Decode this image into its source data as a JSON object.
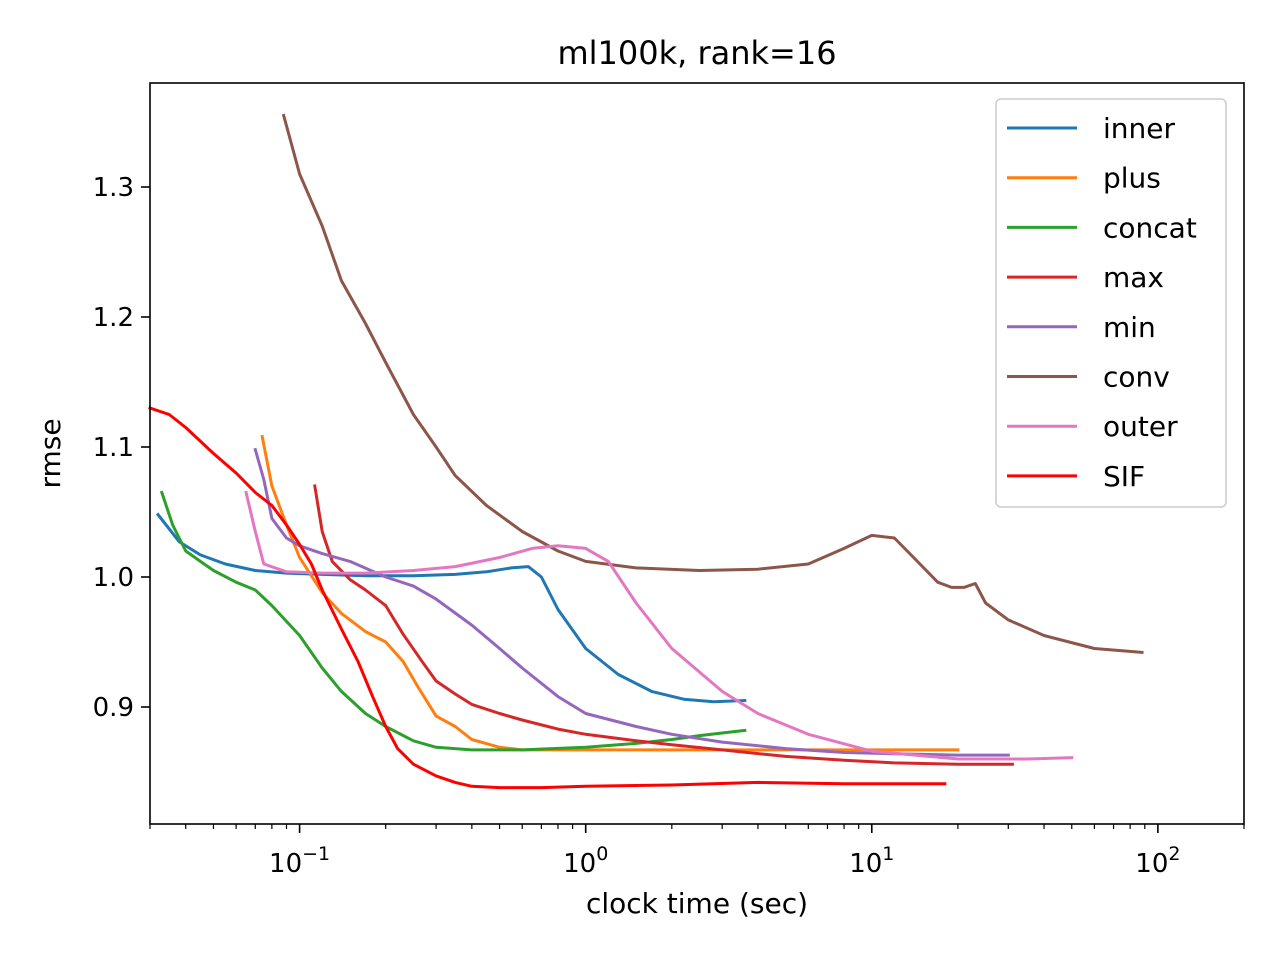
{
  "chart_data": {
    "type": "line",
    "title": "ml100k, rank=16",
    "xlabel": "clock time (sec)",
    "ylabel": "rmse",
    "xscale": "log",
    "xlim": [
      0.03,
      200
    ],
    "ylim": [
      0.81,
      1.38
    ],
    "grid": false,
    "legend_position": "top-right",
    "x_ticks": [
      {
        "value": 0.1,
        "base": "10",
        "exp": "−1"
      },
      {
        "value": 1,
        "base": "10",
        "exp": "0"
      },
      {
        "value": 10,
        "base": "10",
        "exp": "1"
      },
      {
        "value": 100,
        "base": "10",
        "exp": "2"
      }
    ],
    "y_ticks": [
      {
        "value": 0.9,
        "label": "0.9"
      },
      {
        "value": 1.0,
        "label": "1.0"
      },
      {
        "value": 1.1,
        "label": "1.1"
      },
      {
        "value": 1.2,
        "label": "1.2"
      },
      {
        "value": 1.3,
        "label": "1.3"
      }
    ],
    "series": [
      {
        "name": "inner",
        "color": "#1f77b4",
        "x": [
          0.032,
          0.038,
          0.045,
          0.055,
          0.07,
          0.09,
          0.12,
          0.17,
          0.25,
          0.35,
          0.45,
          0.55,
          0.63,
          0.7,
          0.8,
          1.0,
          1.3,
          1.7,
          2.2,
          2.8,
          3.6
        ],
        "y": [
          1.048,
          1.027,
          1.017,
          1.01,
          1.005,
          1.003,
          1.002,
          1.001,
          1.001,
          1.002,
          1.004,
          1.007,
          1.008,
          1.0,
          0.975,
          0.945,
          0.925,
          0.912,
          0.906,
          0.904,
          0.905
        ]
      },
      {
        "name": "plus",
        "color": "#ff7f0e",
        "x": [
          0.074,
          0.08,
          0.09,
          0.1,
          0.12,
          0.14,
          0.17,
          0.2,
          0.23,
          0.26,
          0.3,
          0.35,
          0.4,
          0.5,
          0.6,
          0.8,
          1.2,
          2.0,
          3.5,
          8,
          20
        ],
        "y": [
          1.108,
          1.07,
          1.04,
          1.015,
          0.988,
          0.972,
          0.958,
          0.95,
          0.935,
          0.915,
          0.893,
          0.885,
          0.875,
          0.869,
          0.867,
          0.867,
          0.867,
          0.867,
          0.867,
          0.867,
          0.867
        ]
      },
      {
        "name": "concat",
        "color": "#2ca02c",
        "x": [
          0.033,
          0.036,
          0.04,
          0.045,
          0.05,
          0.06,
          0.07,
          0.08,
          0.1,
          0.12,
          0.14,
          0.17,
          0.2,
          0.25,
          0.3,
          0.4,
          0.6,
          1.0,
          1.5,
          2.0,
          2.5,
          3.0,
          3.6
        ],
        "y": [
          1.065,
          1.04,
          1.02,
          1.012,
          1.005,
          0.996,
          0.99,
          0.978,
          0.955,
          0.93,
          0.912,
          0.895,
          0.885,
          0.874,
          0.869,
          0.867,
          0.867,
          0.869,
          0.872,
          0.875,
          0.878,
          0.88,
          0.882
        ]
      },
      {
        "name": "max",
        "color": "#d62728",
        "x": [
          0.113,
          0.12,
          0.13,
          0.15,
          0.17,
          0.2,
          0.23,
          0.27,
          0.3,
          0.35,
          0.4,
          0.5,
          0.6,
          0.8,
          1.0,
          1.5,
          2.0,
          3.0,
          5.0,
          8.0,
          12,
          20,
          31
        ],
        "y": [
          1.07,
          1.035,
          1.012,
          0.998,
          0.99,
          0.978,
          0.956,
          0.934,
          0.92,
          0.91,
          0.902,
          0.895,
          0.89,
          0.883,
          0.879,
          0.874,
          0.871,
          0.867,
          0.862,
          0.859,
          0.857,
          0.856,
          0.856
        ]
      },
      {
        "name": "min",
        "color": "#9467bd",
        "x": [
          0.07,
          0.075,
          0.08,
          0.09,
          0.1,
          0.12,
          0.15,
          0.2,
          0.25,
          0.3,
          0.4,
          0.5,
          0.6,
          0.8,
          1.0,
          1.5,
          2.0,
          3.0,
          5.0,
          8.0,
          12,
          20,
          30
        ],
        "y": [
          1.098,
          1.075,
          1.045,
          1.03,
          1.024,
          1.018,
          1.012,
          1.0,
          0.993,
          0.983,
          0.963,
          0.945,
          0.93,
          0.908,
          0.895,
          0.885,
          0.879,
          0.873,
          0.868,
          0.865,
          0.864,
          0.863,
          0.863
        ]
      },
      {
        "name": "conv",
        "color": "#8c564b",
        "x": [
          0.088,
          0.1,
          0.12,
          0.14,
          0.17,
          0.2,
          0.25,
          0.3,
          0.35,
          0.45,
          0.6,
          0.8,
          1.0,
          1.5,
          2.5,
          4.0,
          6.0,
          8.0,
          10,
          12,
          14,
          17,
          19,
          21,
          23,
          25,
          30,
          40,
          60,
          88
        ],
        "y": [
          1.355,
          1.31,
          1.27,
          1.228,
          1.195,
          1.165,
          1.125,
          1.1,
          1.078,
          1.055,
          1.035,
          1.02,
          1.012,
          1.007,
          1.005,
          1.006,
          1.01,
          1.022,
          1.032,
          1.03,
          1.015,
          0.996,
          0.992,
          0.992,
          0.995,
          0.98,
          0.967,
          0.955,
          0.945,
          0.942
        ]
      },
      {
        "name": "outer",
        "color": "#e377c2",
        "x": [
          0.065,
          0.07,
          0.075,
          0.09,
          0.12,
          0.17,
          0.25,
          0.35,
          0.5,
          0.65,
          0.8,
          1.0,
          1.2,
          1.5,
          2.0,
          3.0,
          4.0,
          6.0,
          10,
          20,
          35,
          50
        ],
        "y": [
          1.065,
          1.035,
          1.01,
          1.004,
          1.003,
          1.003,
          1.005,
          1.008,
          1.015,
          1.022,
          1.024,
          1.022,
          1.012,
          0.98,
          0.945,
          0.912,
          0.895,
          0.879,
          0.866,
          0.86,
          0.86,
          0.861
        ]
      },
      {
        "name": "SIF",
        "color": "#ff0000",
        "x": [
          0.03,
          0.035,
          0.04,
          0.05,
          0.06,
          0.07,
          0.08,
          0.09,
          0.1,
          0.11,
          0.12,
          0.14,
          0.16,
          0.18,
          0.2,
          0.22,
          0.25,
          0.3,
          0.35,
          0.4,
          0.5,
          0.7,
          1.0,
          2.0,
          4.0,
          8.0,
          18
        ],
        "y": [
          1.13,
          1.125,
          1.115,
          1.095,
          1.08,
          1.065,
          1.055,
          1.04,
          1.025,
          1.01,
          0.99,
          0.96,
          0.935,
          0.908,
          0.885,
          0.868,
          0.856,
          0.847,
          0.842,
          0.839,
          0.838,
          0.838,
          0.839,
          0.84,
          0.842,
          0.841,
          0.841
        ]
      }
    ]
  }
}
